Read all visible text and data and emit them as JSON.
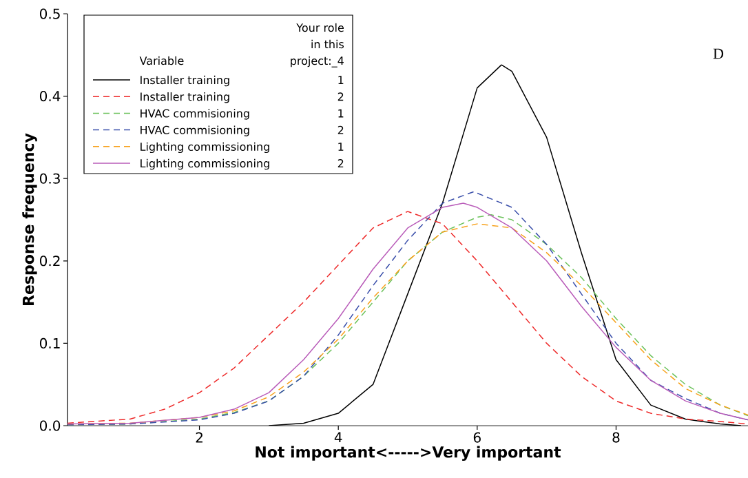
{
  "chart_data": {
    "type": "line",
    "xlabel": "Not important<----->Very important",
    "ylabel": "Response frequency",
    "legend_title": "Variable",
    "legend": "top left",
    "xlim": [
      0.1,
      9.9
    ],
    "ylim": [
      0,
      0.5
    ],
    "xticks": [
      2,
      4,
      6,
      8
    ],
    "yticks": [
      {
        "value": 0,
        "label": "0.0"
      },
      0.1,
      0.2,
      0.3,
      0.4,
      0.5
    ],
    "annotations": [
      "Your role in this project:_4",
      "1",
      "2",
      "1",
      "2",
      "1",
      "2",
      "D"
    ],
    "series": [
      {
        "name": "Installer training",
        "color": "#000000",
        "line_style": "solid",
        "x": [
          3,
          3.5,
          4,
          4.5,
          5,
          5.5,
          6,
          6.35,
          6.5,
          7,
          7.5,
          8,
          8.5,
          9,
          9.5,
          9.8
        ],
        "values": [
          0,
          0.003,
          0.015,
          0.05,
          0.16,
          0.27,
          0.41,
          0.438,
          0.43,
          0.35,
          0.21,
          0.08,
          0.025,
          0.008,
          0.002,
          0
        ]
      },
      {
        "name": "Installer training",
        "color": "#ee2a2a",
        "line_style": "dashed",
        "x": [
          0.1,
          1,
          1.5,
          2,
          2.5,
          3,
          3.5,
          4,
          4.5,
          5,
          5.5,
          6,
          6.5,
          7,
          7.5,
          8,
          8.5,
          9,
          9.5,
          9.9
        ],
        "values": [
          0.003,
          0.008,
          0.02,
          0.04,
          0.07,
          0.11,
          0.15,
          0.195,
          0.24,
          0.26,
          0.245,
          0.2,
          0.15,
          0.1,
          0.06,
          0.03,
          0.015,
          0.008,
          0.005,
          0.002
        ]
      },
      {
        "name": "HVAC commisioning",
        "color": "#6cc25c",
        "line_style": "dashed",
        "x": [
          0.1,
          1,
          2,
          2.5,
          3,
          3.5,
          4,
          4.5,
          5,
          5.5,
          6,
          6.2,
          6.5,
          7,
          7.5,
          8,
          8.5,
          9,
          9.5,
          9.9
        ],
        "values": [
          0.001,
          0.002,
          0.008,
          0.016,
          0.03,
          0.06,
          0.1,
          0.15,
          0.2,
          0.235,
          0.253,
          0.256,
          0.25,
          0.22,
          0.18,
          0.13,
          0.085,
          0.05,
          0.025,
          0.012
        ]
      },
      {
        "name": "HVAC commisioning",
        "color": "#3a4faa",
        "line_style": "dashed",
        "x": [
          0.1,
          1,
          2,
          2.5,
          3,
          3.5,
          4,
          4.5,
          5,
          5.5,
          5.95,
          6.5,
          7,
          7.5,
          8,
          8.5,
          9,
          9.5,
          9.9
        ],
        "values": [
          0.001,
          0.002,
          0.007,
          0.015,
          0.03,
          0.06,
          0.11,
          0.17,
          0.225,
          0.27,
          0.284,
          0.265,
          0.22,
          0.16,
          0.1,
          0.055,
          0.033,
          0.015,
          0.007
        ]
      },
      {
        "name": "Lighting commissioning",
        "color": "#f7a11a",
        "line_style": "dashed",
        "x": [
          0.1,
          1,
          2,
          2.5,
          3,
          3.5,
          4,
          4.5,
          5,
          5.5,
          6,
          6.5,
          7,
          7.5,
          8,
          8.5,
          9,
          9.5,
          9.9
        ],
        "values": [
          0.002,
          0.003,
          0.01,
          0.018,
          0.035,
          0.065,
          0.105,
          0.155,
          0.2,
          0.235,
          0.245,
          0.24,
          0.21,
          0.17,
          0.125,
          0.08,
          0.045,
          0.025,
          0.013
        ]
      },
      {
        "name": "Lighting commissioning",
        "color": "#b95cb9",
        "line_style": "solid",
        "x": [
          0.1,
          1,
          2,
          2.5,
          3,
          3.5,
          4,
          4.5,
          5,
          5.5,
          5.8,
          6,
          6.5,
          7,
          7.5,
          8,
          8.5,
          9,
          9.5,
          9.9
        ],
        "values": [
          0.002,
          0.003,
          0.01,
          0.02,
          0.04,
          0.08,
          0.13,
          0.19,
          0.24,
          0.265,
          0.27,
          0.265,
          0.24,
          0.2,
          0.145,
          0.095,
          0.055,
          0.03,
          0.015,
          0.007
        ]
      }
    ]
  }
}
